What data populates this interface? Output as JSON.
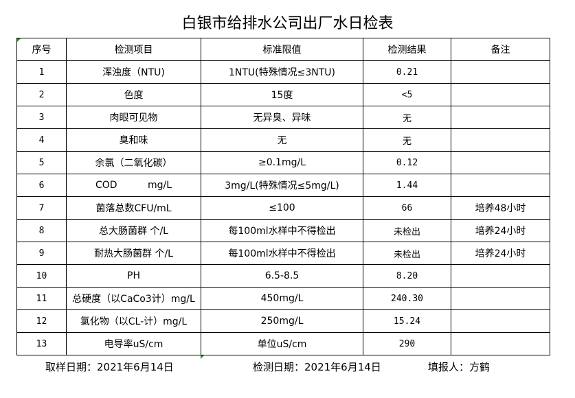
{
  "title": "白银市给排水公司出厂水日检表",
  "headers": [
    "序号",
    "检测项目",
    "标准限值",
    "检测结果",
    "备注"
  ],
  "rows": [
    [
      "1",
      "浑浊度（NTU)",
      "1NTU(特殊情况≤3NTU)",
      "0.21",
      ""
    ],
    [
      "2",
      "色度",
      "15度",
      "<5",
      ""
    ],
    [
      "3",
      "肉眼可见物",
      "无异臭、异味",
      "无",
      ""
    ],
    [
      "4",
      "臭和味",
      "无",
      "无",
      ""
    ],
    [
      "5",
      "余氯（二氧化碳）",
      "≥0.1mg/L",
      "0.12",
      ""
    ],
    [
      "6",
      "COD          mg/L",
      "3mg/L(特殊情况≤5mg/L)",
      "1.44",
      ""
    ],
    [
      "7",
      "菌落总数CFU/mL",
      "≤100",
      "66",
      "培养48小时"
    ],
    [
      "8",
      "总大肠菌群 个/L",
      "每100ml水样中不得检出",
      "未检出",
      "培养24小时"
    ],
    [
      "9",
      "耐热大肠菌群 个/L",
      "每100ml水样中不得检出",
      "未检出",
      "培养24小时"
    ],
    [
      "10",
      "PH",
      "6.5-8.5",
      "8.20",
      ""
    ],
    [
      "11",
      "总硬度（以CaCo3计）mg/L",
      "450mg/L",
      "240.30",
      ""
    ],
    [
      "12",
      "氯化物（以CL-计）mg/L",
      "250mg/L",
      "15.24",
      ""
    ],
    [
      "13",
      "电导率uS/cm",
      "单位uS/cm",
      "290",
      ""
    ]
  ],
  "footer": {
    "sample_date": "取样日期：2021年6月14日",
    "test_date": "检测日期：2021年6月14日",
    "reporter": "填报人：方鹤"
  }
}
